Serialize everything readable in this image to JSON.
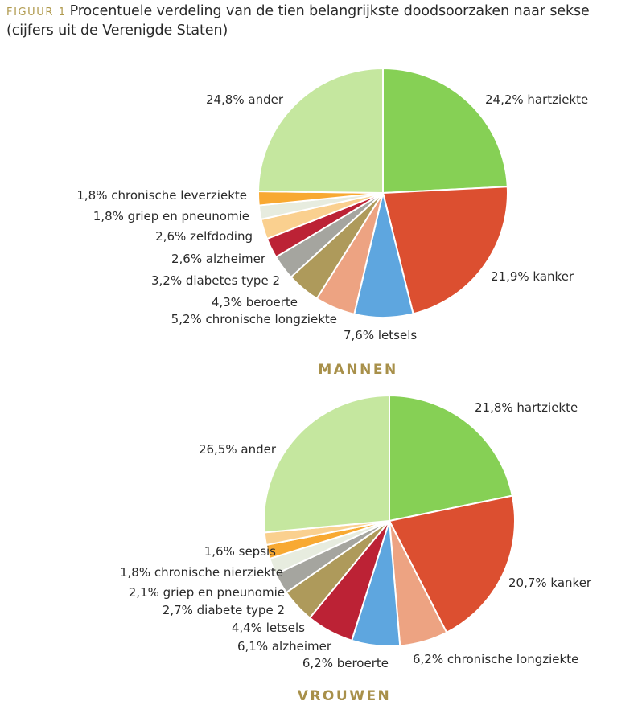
{
  "title": {
    "prefix": "FIGUUR 1",
    "text": "Procentuele verdeling van de tien belangrijkste doodsoorzaken naar sekse (cijfers uit de Verenigde Staten)"
  },
  "colors": {
    "hartziekte": "#86d055",
    "kanker": "#dc4f30",
    "ander": "#c5e79f",
    "letsels_men": "#5ea6df",
    "chronische_longziekte": "#eda382",
    "beroerte_men": "#ae9a5b",
    "diabetes": "#a5a59f",
    "alzheimer": "#bc2235",
    "zelfdoding": "#fad08f",
    "griep": "#e7ecdf",
    "lever_nier": "#f8a932"
  },
  "chart_data": [
    {
      "type": "pie",
      "title": "MANNEN",
      "slices": [
        {
          "label": "24,2% hartziekte",
          "value": 24.2,
          "color": "#86d055"
        },
        {
          "label": "21,9% kanker",
          "value": 21.9,
          "color": "#dc4f30"
        },
        {
          "label": "7,6% letsels",
          "value": 7.6,
          "color": "#5ea6df"
        },
        {
          "label": "5,2% chronische longziekte",
          "value": 5.2,
          "color": "#eda382"
        },
        {
          "label": "4,3% beroerte",
          "value": 4.3,
          "color": "#ae9a5b"
        },
        {
          "label": "3,2% diabetes type 2",
          "value": 3.2,
          "color": "#a5a59f"
        },
        {
          "label": "2,6% alzheimer",
          "value": 2.6,
          "color": "#bc2235"
        },
        {
          "label": "2,6% zelfdoding",
          "value": 2.6,
          "color": "#fad08f"
        },
        {
          "label": "1,8% griep en pneunomie",
          "value": 1.8,
          "color": "#e7ecdf"
        },
        {
          "label": "1,8% chronische leverziekte",
          "value": 1.8,
          "color": "#f8a932"
        },
        {
          "label": "24,8% ander",
          "value": 24.8,
          "color": "#c5e79f"
        }
      ]
    },
    {
      "type": "pie",
      "title": "VROUWEN",
      "slices": [
        {
          "label": "21,8% hartziekte",
          "value": 21.8,
          "color": "#86d055"
        },
        {
          "label": "20,7% kanker",
          "value": 20.7,
          "color": "#dc4f30"
        },
        {
          "label": "6,2% chronische longziekte",
          "value": 6.2,
          "color": "#eda382"
        },
        {
          "label": "6,2% beroerte",
          "value": 6.2,
          "color": "#5ea6df"
        },
        {
          "label": "6,1% alzheimer",
          "value": 6.1,
          "color": "#bc2235"
        },
        {
          "label": "4,4% letsels",
          "value": 4.4,
          "color": "#ae9a5b"
        },
        {
          "label": "2,7% diabete type 2",
          "value": 2.7,
          "color": "#a5a59f"
        },
        {
          "label": "2,1% griep en pneunomie",
          "value": 2.1,
          "color": "#e7ecdf"
        },
        {
          "label": "1,8% chronische nierziekte",
          "value": 1.8,
          "color": "#f8a932"
        },
        {
          "label": "1,6% sepsis",
          "value": 1.6,
          "color": "#fad08f"
        },
        {
          "label": "26,5% ander",
          "value": 26.5,
          "color": "#c5e79f"
        }
      ]
    }
  ]
}
